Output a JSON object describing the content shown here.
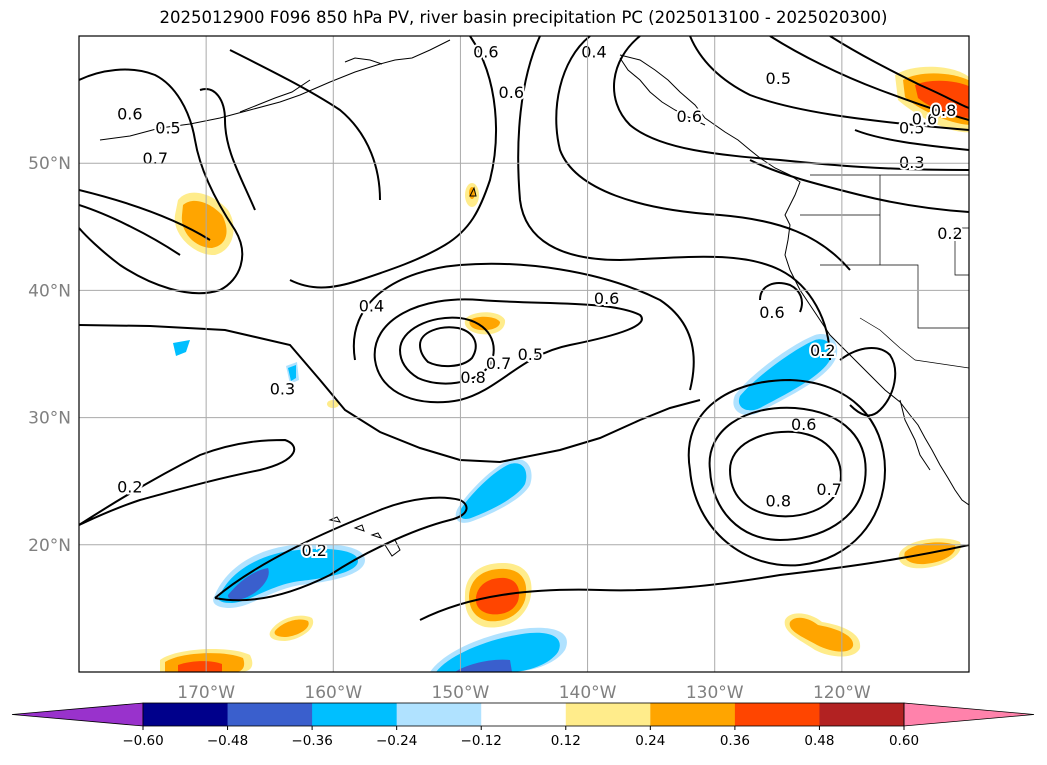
{
  "title": "2025012900 F096 850 hPa PV, river basin precipitation PC (2025013100 - 2025020300)",
  "map": {
    "projection": "PlateCarree",
    "extent": {
      "lon_min": -180,
      "lon_max": -110,
      "lat_min": 10,
      "lat_max": 60
    },
    "gridlines": true,
    "lat_ticks": [
      {
        "value": 20,
        "label": "20°N"
      },
      {
        "value": 30,
        "label": "30°N"
      },
      {
        "value": 40,
        "label": "40°N"
      },
      {
        "value": 50,
        "label": "50°N"
      }
    ],
    "lon_ticks": [
      {
        "value": -170,
        "label": "170°W"
      },
      {
        "value": -160,
        "label": "160°W"
      },
      {
        "value": -150,
        "label": "150°W"
      },
      {
        "value": -140,
        "label": "140°W"
      },
      {
        "value": -130,
        "label": "130°W"
      },
      {
        "value": -120,
        "label": "120°W"
      }
    ],
    "contour_labels": [
      {
        "text": "0.6",
        "lon": -176,
        "lat": 53.9
      },
      {
        "text": "0.5",
        "lon": -173,
        "lat": 52.8
      },
      {
        "text": "0.7",
        "lon": -174,
        "lat": 50.4
      },
      {
        "text": "0.6",
        "lon": -148,
        "lat": 58.8
      },
      {
        "text": "0.6",
        "lon": -146,
        "lat": 55.6
      },
      {
        "text": "0.4",
        "lon": -139.5,
        "lat": 58.8
      },
      {
        "text": "0.5",
        "lon": -125,
        "lat": 56.7
      },
      {
        "text": "0.6",
        "lon": -132,
        "lat": 53.7
      },
      {
        "text": "0.5",
        "lon": -114.5,
        "lat": 52.8
      },
      {
        "text": "0.6",
        "lon": -113.5,
        "lat": 53.5
      },
      {
        "text": "0.8",
        "lon": -112,
        "lat": 54.2
      },
      {
        "text": "0.3",
        "lon": -114.5,
        "lat": 50.1
      },
      {
        "text": "0.2",
        "lon": -111.5,
        "lat": 44.5
      },
      {
        "text": "0.4",
        "lon": -157,
        "lat": 38.8
      },
      {
        "text": "0.3",
        "lon": -164,
        "lat": 32.3
      },
      {
        "text": "0.6",
        "lon": -138.5,
        "lat": 39.4
      },
      {
        "text": "0.6",
        "lon": -125.5,
        "lat": 38.3
      },
      {
        "text": "0.8",
        "lon": -149,
        "lat": 33.2
      },
      {
        "text": "0.7",
        "lon": -147,
        "lat": 34.3
      },
      {
        "text": "0.5",
        "lon": -144.5,
        "lat": 35.0
      },
      {
        "text": "0.6",
        "lon": -123,
        "lat": 29.5
      },
      {
        "text": "0.8",
        "lon": -125,
        "lat": 23.5
      },
      {
        "text": "0.7",
        "lon": -121,
        "lat": 24.4
      },
      {
        "text": "0.2",
        "lon": -176,
        "lat": 24.6
      },
      {
        "text": "0.2",
        "lon": -161.5,
        "lat": 19.6
      },
      {
        "text": "0.2",
        "lon": -121.5,
        "lat": 35.3
      }
    ]
  },
  "colorbar": {
    "extend": "both",
    "boundaries": [
      -0.6,
      -0.48,
      -0.36,
      -0.24,
      -0.12,
      0.12,
      0.24,
      0.36,
      0.48,
      0.6
    ],
    "tick_labels": [
      "−0.60",
      "−0.48",
      "−0.36",
      "−0.24",
      "−0.12",
      "0.12",
      "0.24",
      "0.36",
      "0.48",
      "0.60"
    ],
    "colors": [
      "#9932cc",
      "#00008b",
      "#3a5fcd",
      "#00bfff",
      "#b0e2ff",
      "#ffffff",
      "#ffec8b",
      "#ffa500",
      "#ff4500",
      "#b22222",
      "#ff82ab"
    ]
  }
}
